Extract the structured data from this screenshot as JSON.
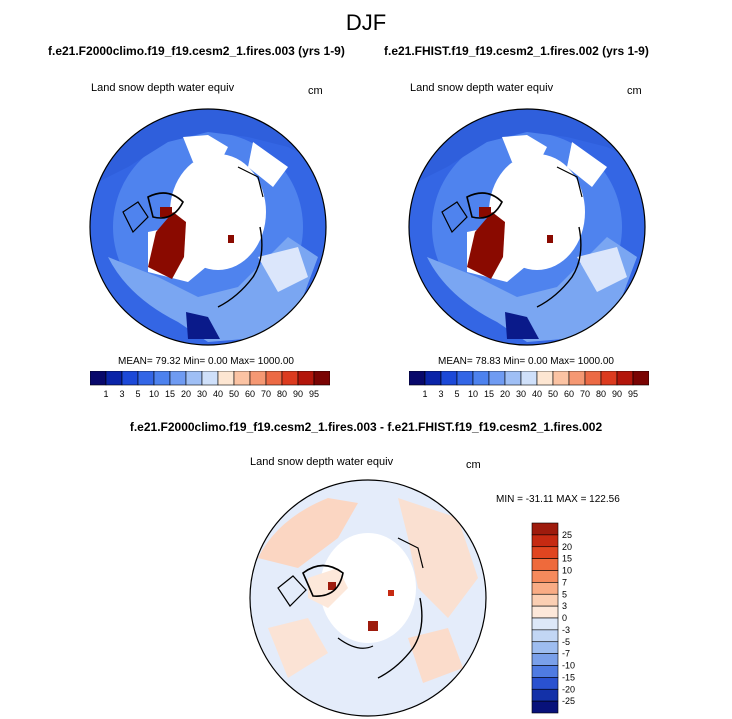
{
  "season": "DJF",
  "panels": [
    {
      "title": "f.e21.F2000climo.f19_f19.cesm2_1.fires.003 (yrs 1-9)",
      "variable": "Land snow depth water equiv",
      "units": "cm",
      "stats": "MEAN=  79.32  Min=   0.00  Max= 1000.00"
    },
    {
      "title": "f.e21.FHIST.f19_f19.cesm2_1.fires.002 (yrs 1-9)",
      "variable": "Land snow depth water equiv",
      "units": "cm",
      "stats": "MEAN=  78.83  Min=   0.00  Max= 1000.00"
    }
  ],
  "colorbar": {
    "labels": [
      "1",
      "3",
      "5",
      "10",
      "15",
      "20",
      "30",
      "40",
      "50",
      "60",
      "70",
      "80",
      "90",
      "95"
    ],
    "colors": [
      "#08086b",
      "#0a24a8",
      "#1c49d8",
      "#3366e6",
      "#4d82ee",
      "#6f9bf2",
      "#9fbff5",
      "#cfe0fa",
      "#fde6d2",
      "#fbc3a3",
      "#f59873",
      "#ec6a45",
      "#dc3b1f",
      "#b3160b",
      "#7a0403"
    ]
  },
  "diff": {
    "title": "f.e21.F2000climo.f19_f19.cesm2_1.fires.003 - f.e21.FHIST.f19_f19.cesm2_1.fires.002",
    "variable": "Land snow depth water equiv",
    "units": "cm",
    "minmax": "MIN = -31.11 MAX = 122.56",
    "colorbar": {
      "labels": [
        "25",
        "20",
        "15",
        "10",
        "7",
        "5",
        "3",
        "0",
        "-3",
        "-5",
        "-7",
        "-10",
        "-15",
        "-20",
        "-25"
      ],
      "colors": [
        "#9e1b0d",
        "#c62a12",
        "#e04520",
        "#ef6a3b",
        "#f58a5c",
        "#f9ac85",
        "#fbcfb3",
        "#fde8da",
        "#dde8f8",
        "#c2d6f4",
        "#9ebdf0",
        "#7aa0ea",
        "#4f7be2",
        "#2a52d0",
        "#1331a8",
        "#08127a"
      ]
    }
  }
}
